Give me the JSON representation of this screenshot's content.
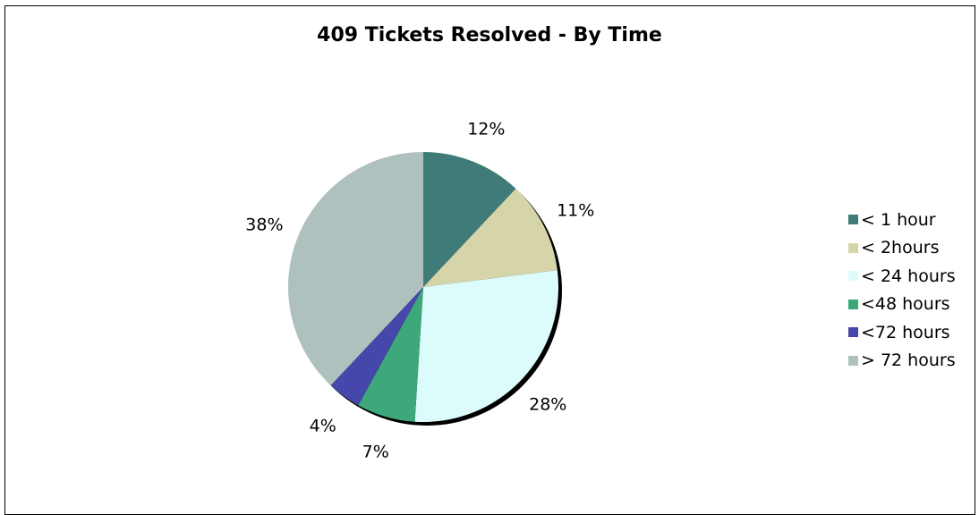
{
  "chart_data": {
    "type": "pie",
    "title": "409 Tickets Resolved - By Time",
    "slices": [
      {
        "label": "< 1 hour",
        "value": 12,
        "pct_label": "12%",
        "color": "#3f7b78"
      },
      {
        "label": "< 2hours",
        "value": 11,
        "pct_label": "11%",
        "color": "#d6d4a9"
      },
      {
        "label": "< 24 hours",
        "value": 28,
        "pct_label": "28%",
        "color": "#dcfcfc"
      },
      {
        "label": "<48 hours",
        "value": 7,
        "pct_label": "7%",
        "color": "#3da87a"
      },
      {
        "label": "<72 hours",
        "value": 4,
        "pct_label": "4%",
        "color": "#4647ab"
      },
      {
        "label": "> 72 hours",
        "value": 38,
        "pct_label": "38%",
        "color": "#aec1be"
      }
    ],
    "legend_position": "right"
  }
}
